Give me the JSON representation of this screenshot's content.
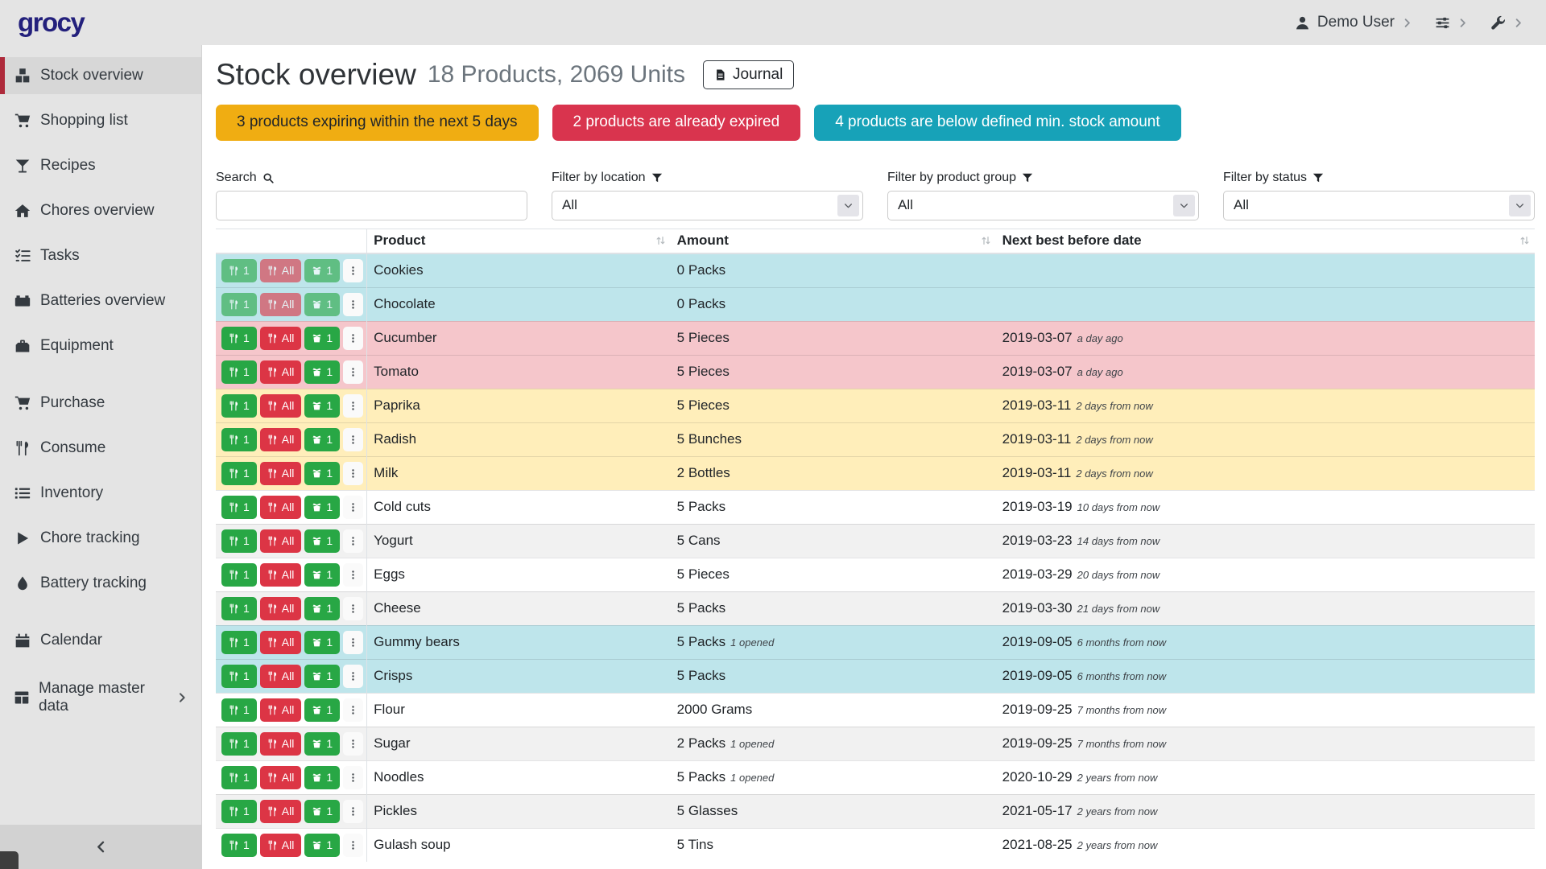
{
  "topbar": {
    "logo": "grocy",
    "user_label": "Demo User"
  },
  "sidebar": {
    "items": [
      {
        "label": "Stock overview",
        "icon": "boxes-icon",
        "active": true,
        "group": 1
      },
      {
        "label": "Shopping list",
        "icon": "shopping-cart-icon",
        "active": false,
        "group": 1
      },
      {
        "label": "Recipes",
        "icon": "cocktail-icon",
        "active": false,
        "group": 1
      },
      {
        "label": "Chores overview",
        "icon": "home-icon",
        "active": false,
        "group": 1
      },
      {
        "label": "Tasks",
        "icon": "tasks-icon",
        "active": false,
        "group": 1
      },
      {
        "label": "Batteries overview",
        "icon": "battery-icon",
        "active": false,
        "group": 1
      },
      {
        "label": "Equipment",
        "icon": "toolbox-icon",
        "active": false,
        "group": 1
      },
      {
        "label": "Purchase",
        "icon": "shopping-cart-icon",
        "active": false,
        "group": 2
      },
      {
        "label": "Consume",
        "icon": "utensils-icon",
        "active": false,
        "group": 2
      },
      {
        "label": "Inventory",
        "icon": "list-icon",
        "active": false,
        "group": 2
      },
      {
        "label": "Chore tracking",
        "icon": "play-icon",
        "active": false,
        "group": 2
      },
      {
        "label": "Battery tracking",
        "icon": "tint-icon",
        "active": false,
        "group": 2
      },
      {
        "label": "Calendar",
        "icon": "calendar-icon",
        "active": false,
        "group": 3
      },
      {
        "label": "Manage master data",
        "icon": "table-icon",
        "active": false,
        "group": 4,
        "has_submenu": true
      }
    ]
  },
  "page": {
    "title": "Stock overview",
    "subtitle": "18 Products, 2069 Units",
    "journal_label": "Journal",
    "alerts": [
      {
        "text": "3 products expiring within the next 5 days",
        "type": "warning"
      },
      {
        "text": "2 products are already expired",
        "type": "danger"
      },
      {
        "text": "4 products are below defined min. stock amount",
        "type": "info"
      }
    ],
    "filters": {
      "search": {
        "label": "Search",
        "value": ""
      },
      "location": {
        "label": "Filter by location",
        "value": "All"
      },
      "product_group": {
        "label": "Filter by product group",
        "value": "All"
      },
      "status": {
        "label": "Filter by status",
        "value": "All"
      }
    }
  },
  "table": {
    "columns": [
      "Product",
      "Amount",
      "Next best before date"
    ],
    "actions": {
      "consume_one": "1",
      "consume_all": "All",
      "open_one": "1"
    },
    "rows": [
      {
        "product": "Cookies",
        "amount": "0 Packs",
        "amount_note": "",
        "date": "",
        "date_note": "",
        "status": "info",
        "disabled": true
      },
      {
        "product": "Chocolate",
        "amount": "0 Packs",
        "amount_note": "",
        "date": "",
        "date_note": "",
        "status": "info",
        "disabled": true
      },
      {
        "product": "Cucumber",
        "amount": "5 Pieces",
        "amount_note": "",
        "date": "2019-03-07",
        "date_note": "a day ago",
        "status": "danger",
        "disabled": false
      },
      {
        "product": "Tomato",
        "amount": "5 Pieces",
        "amount_note": "",
        "date": "2019-03-07",
        "date_note": "a day ago",
        "status": "danger",
        "disabled": false
      },
      {
        "product": "Paprika",
        "amount": "5 Pieces",
        "amount_note": "",
        "date": "2019-03-11",
        "date_note": "2 days from now",
        "status": "warning",
        "disabled": false
      },
      {
        "product": "Radish",
        "amount": "5 Bunches",
        "amount_note": "",
        "date": "2019-03-11",
        "date_note": "2 days from now",
        "status": "warning",
        "disabled": false
      },
      {
        "product": "Milk",
        "amount": "2 Bottles",
        "amount_note": "",
        "date": "2019-03-11",
        "date_note": "2 days from now",
        "status": "warning",
        "disabled": false
      },
      {
        "product": "Cold cuts",
        "amount": "5 Packs",
        "amount_note": "",
        "date": "2019-03-19",
        "date_note": "10 days from now",
        "status": "",
        "disabled": false
      },
      {
        "product": "Yogurt",
        "amount": "5 Cans",
        "amount_note": "",
        "date": "2019-03-23",
        "date_note": "14 days from now",
        "status": "",
        "disabled": false
      },
      {
        "product": "Eggs",
        "amount": "5 Pieces",
        "amount_note": "",
        "date": "2019-03-29",
        "date_note": "20 days from now",
        "status": "",
        "disabled": false
      },
      {
        "product": "Cheese",
        "amount": "5 Packs",
        "amount_note": "",
        "date": "2019-03-30",
        "date_note": "21 days from now",
        "status": "",
        "disabled": false
      },
      {
        "product": "Gummy bears",
        "amount": "5 Packs",
        "amount_note": "1 opened",
        "date": "2019-09-05",
        "date_note": "6 months from now",
        "status": "info",
        "disabled": false
      },
      {
        "product": "Crisps",
        "amount": "5 Packs",
        "amount_note": "",
        "date": "2019-09-05",
        "date_note": "6 months from now",
        "status": "info",
        "disabled": false
      },
      {
        "product": "Flour",
        "amount": "2000 Grams",
        "amount_note": "",
        "date": "2019-09-25",
        "date_note": "7 months from now",
        "status": "",
        "disabled": false
      },
      {
        "product": "Sugar",
        "amount": "2 Packs",
        "amount_note": "1 opened",
        "date": "2019-09-25",
        "date_note": "7 months from now",
        "status": "",
        "disabled": false
      },
      {
        "product": "Noodles",
        "amount": "5 Packs",
        "amount_note": "1 opened",
        "date": "2020-10-29",
        "date_note": "2 years from now",
        "status": "",
        "disabled": false
      },
      {
        "product": "Pickles",
        "amount": "5 Glasses",
        "amount_note": "",
        "date": "2021-05-17",
        "date_note": "2 years from now",
        "status": "",
        "disabled": false
      },
      {
        "product": "Gulash soup",
        "amount": "5 Tins",
        "amount_note": "",
        "date": "2021-08-25",
        "date_note": "2 years from now",
        "status": "",
        "disabled": false
      }
    ]
  },
  "colors": {
    "accent_red": "#ae2a3b",
    "alert_warning": "#f0ad12",
    "alert_danger": "#d9344e",
    "alert_info": "#17a2b8",
    "row_info": "#bee5eb",
    "row_danger": "#f5c6cb",
    "row_warning": "#ffeeba",
    "btn_success": "#28a745",
    "btn_danger": "#dc3545",
    "logo_navy": "#23207c"
  }
}
